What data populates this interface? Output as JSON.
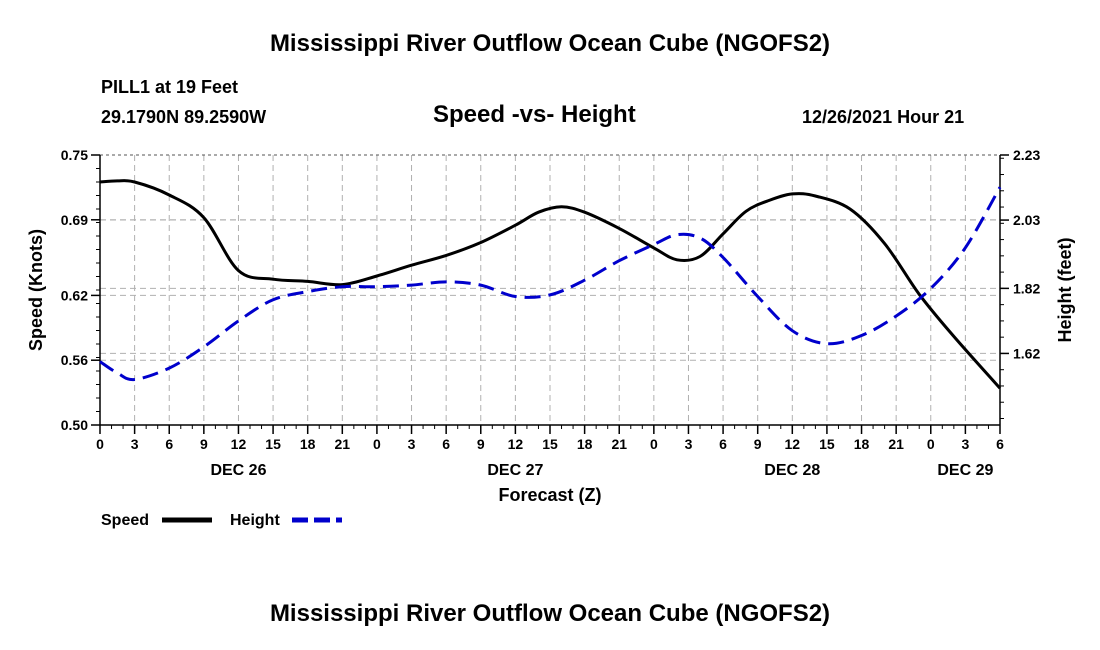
{
  "page_title": "Mississippi River Outflow Ocean Cube (NGOFS2)",
  "station": "PILL1 at 19 Feet",
  "coordinates": "29.1790N  89.2590W",
  "subtitle": "Speed -vs- Height",
  "datetime": "12/26/2021 Hour 21",
  "colors": {
    "speed": "#000000",
    "height": "#0000cc",
    "grid": "#b0b0b0"
  },
  "chart_data": {
    "type": "line",
    "title": "Speed -vs- Height",
    "xlabel": "Forecast (Z)",
    "ylabel": "Speed (Knots)",
    "y2label": "Height (feet)",
    "x_unit": "hours from Dec 26 00Z",
    "xlim": [
      0,
      78
    ],
    "ylim": [
      0.5,
      0.75
    ],
    "y2lim": [
      1.4,
      2.23
    ],
    "y_ticks": [
      "0.50",
      "0.56",
      "0.62",
      "0.69",
      "0.75"
    ],
    "y_tick_values": [
      0.5,
      0.56,
      0.62,
      0.69,
      0.75
    ],
    "y2_ticks": [
      "1.62",
      "1.82",
      "2.03",
      "2.23"
    ],
    "y2_tick_values": [
      1.62,
      1.82,
      2.03,
      2.23
    ],
    "x_ticks": [
      "0",
      "3",
      "6",
      "9",
      "12",
      "15",
      "18",
      "21",
      "0",
      "3",
      "6",
      "9",
      "12",
      "15",
      "18",
      "21",
      "0",
      "3",
      "6",
      "9",
      "12",
      "15",
      "18",
      "21",
      "0",
      "3",
      "6"
    ],
    "day_labels": [
      {
        "label": "DEC 26",
        "x": 12
      },
      {
        "label": "DEC 27",
        "x": 36
      },
      {
        "label": "DEC 28",
        "x": 60
      },
      {
        "label": "DEC 29",
        "x": 75
      }
    ],
    "grid": true,
    "legend_position": "bottom-left",
    "series": [
      {
        "name": "Speed",
        "axis": "left",
        "style": "solid",
        "color": "#000000",
        "x": [
          0,
          1.5,
          3,
          6,
          9,
          12,
          15,
          18,
          21,
          24,
          27,
          30,
          33,
          36,
          38,
          40,
          42,
          45,
          48,
          50,
          52,
          54,
          56,
          58,
          60,
          62,
          65,
          68,
          71,
          74,
          78
        ],
        "values": [
          0.725,
          0.726,
          0.725,
          0.713,
          0.692,
          0.643,
          0.635,
          0.633,
          0.63,
          0.638,
          0.648,
          0.657,
          0.669,
          0.685,
          0.697,
          0.702,
          0.697,
          0.682,
          0.664,
          0.653,
          0.656,
          0.677,
          0.698,
          0.708,
          0.714,
          0.712,
          0.7,
          0.668,
          0.621,
          0.582,
          0.534
        ]
      },
      {
        "name": "Height",
        "axis": "right",
        "style": "dashed",
        "color": "#0000cc",
        "x": [
          0,
          1.5,
          3,
          6,
          9,
          12,
          15,
          18,
          21,
          24,
          27,
          30,
          33,
          36,
          39,
          42,
          45,
          48,
          50,
          52,
          54,
          57,
          60,
          63,
          66,
          69,
          72,
          75,
          78
        ],
        "values": [
          1.595,
          1.56,
          1.54,
          1.575,
          1.64,
          1.72,
          1.785,
          1.81,
          1.825,
          1.825,
          1.83,
          1.84,
          1.83,
          1.795,
          1.8,
          1.845,
          1.905,
          1.955,
          1.985,
          1.975,
          1.915,
          1.795,
          1.69,
          1.65,
          1.675,
          1.735,
          1.82,
          1.945,
          2.131
        ]
      }
    ]
  },
  "legend": {
    "speed_label": "Speed",
    "height_label": "Height"
  }
}
